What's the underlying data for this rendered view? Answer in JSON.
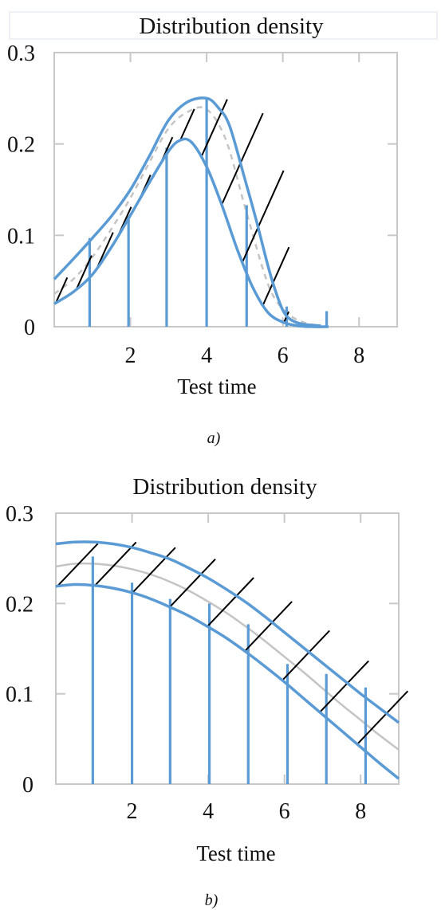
{
  "colors": {
    "band": "#5b9bd5",
    "mean": "#c4c4c4",
    "hatch": "#000000",
    "frame": "#c8c8c8"
  },
  "chart_data": [
    {
      "type": "line",
      "title": "Distribution density",
      "xlabel": "Test time",
      "ylabel": "",
      "caption": "a)",
      "xlim": [
        0,
        9
      ],
      "ylim": [
        0,
        0.3
      ],
      "xticks": [
        2,
        4,
        6,
        8
      ],
      "yticks": [
        0,
        0.1,
        0.2,
        0.3
      ],
      "ytick_labels": [
        "0",
        "0.1",
        "0.2",
        "0.3"
      ],
      "mean_style": "dashed",
      "series": [
        {
          "role": "upper",
          "x": [
            0,
            0.5,
            1,
            1.5,
            2,
            2.5,
            3,
            3.5,
            4,
            4.3,
            4.6,
            5,
            5.3,
            5.6,
            5.8,
            6,
            6.2,
            6.5,
            7
          ],
          "values": [
            0.052,
            0.074,
            0.097,
            0.121,
            0.15,
            0.187,
            0.226,
            0.246,
            0.25,
            0.24,
            0.22,
            0.162,
            0.117,
            0.068,
            0.04,
            0.018,
            0.008,
            0.003,
            0.001
          ]
        },
        {
          "role": "mean",
          "x": [
            0,
            0.5,
            1,
            1.5,
            2,
            2.5,
            3,
            3.5,
            4,
            4.5,
            5,
            5.5,
            5.8,
            6.2,
            6.6,
            7
          ],
          "values": [
            0.036,
            0.052,
            0.076,
            0.107,
            0.141,
            0.18,
            0.217,
            0.235,
            0.238,
            0.205,
            0.132,
            0.06,
            0.03,
            0.012,
            0.004,
            0.001
          ]
        },
        {
          "role": "lower",
          "x": [
            0,
            0.5,
            1,
            1.5,
            2,
            2.5,
            3,
            3.3,
            3.6,
            4,
            4.4,
            4.8,
            5.2,
            5.6,
            6,
            6.4,
            6.8,
            7.2
          ],
          "values": [
            0.025,
            0.038,
            0.057,
            0.087,
            0.122,
            0.158,
            0.192,
            0.204,
            0.202,
            0.175,
            0.133,
            0.085,
            0.044,
            0.016,
            0.005,
            0.001,
            0,
            0
          ]
        }
      ],
      "stems": {
        "x": [
          0.93,
          1.95,
          2.95,
          4.0,
          5.05,
          6.1,
          7.15
        ],
        "values": [
          0.097,
          0.12,
          0.196,
          0.25,
          0.133,
          0.022,
          0.017
        ]
      }
    },
    {
      "type": "line",
      "title": "Distribution density",
      "xlabel": "Test time",
      "ylabel": "",
      "caption": "b)",
      "xlim": [
        0,
        9
      ],
      "ylim": [
        0,
        0.3
      ],
      "xticks": [
        2,
        4,
        6,
        8
      ],
      "yticks": [
        0,
        0.1,
        0.2,
        0.3
      ],
      "ytick_labels": [
        "0",
        "0.1",
        "0.2",
        "0.3"
      ],
      "mean_style": "solid",
      "series": [
        {
          "role": "upper",
          "x": [
            0,
            0.5,
            1,
            1.5,
            2,
            2.5,
            3,
            3.5,
            4,
            4.5,
            5,
            5.5,
            6,
            6.5,
            7,
            7.5,
            8,
            8.5,
            9
          ],
          "values": [
            0.266,
            0.268,
            0.268,
            0.266,
            0.262,
            0.256,
            0.249,
            0.239,
            0.228,
            0.215,
            0.201,
            0.185,
            0.168,
            0.151,
            0.134,
            0.117,
            0.1,
            0.084,
            0.068
          ]
        },
        {
          "role": "mean",
          "x": [
            0,
            0.5,
            1,
            1.5,
            2,
            2.5,
            3,
            3.5,
            4,
            4.5,
            5,
            5.5,
            6,
            6.5,
            7,
            7.5,
            8,
            8.5,
            9
          ],
          "values": [
            0.241,
            0.244,
            0.244,
            0.242,
            0.238,
            0.232,
            0.224,
            0.214,
            0.202,
            0.189,
            0.174,
            0.158,
            0.141,
            0.124,
            0.106,
            0.088,
            0.071,
            0.054,
            0.038
          ]
        },
        {
          "role": "lower",
          "x": [
            0,
            0.5,
            1,
            1.5,
            2,
            2.5,
            3,
            3.5,
            4,
            4.5,
            5,
            5.5,
            6,
            6.5,
            7,
            7.5,
            8,
            8.5,
            9
          ],
          "values": [
            0.219,
            0.221,
            0.22,
            0.217,
            0.212,
            0.205,
            0.196,
            0.186,
            0.174,
            0.161,
            0.146,
            0.13,
            0.113,
            0.095,
            0.077,
            0.059,
            0.041,
            0.023,
            0.006
          ]
        }
      ],
      "stems": {
        "x": [
          0.97,
          2.0,
          3.0,
          4.03,
          5.05,
          6.08,
          7.1,
          8.13
        ],
        "values": [
          0.252,
          0.223,
          0.205,
          0.2,
          0.177,
          0.133,
          0.122,
          0.107
        ]
      }
    }
  ]
}
